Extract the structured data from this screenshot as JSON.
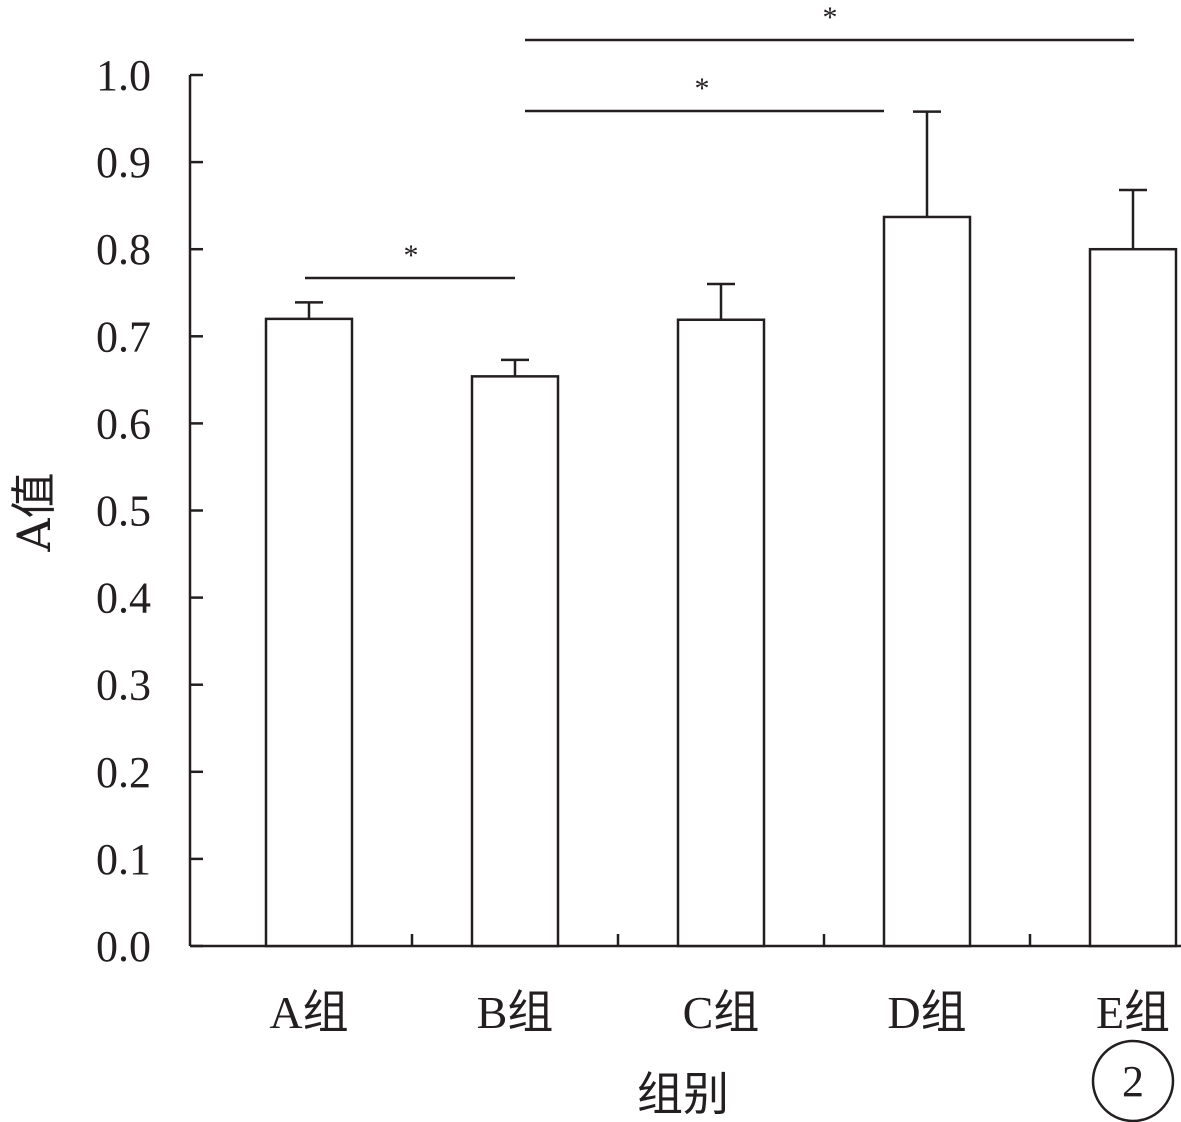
{
  "chart_data": {
    "type": "bar",
    "categories": [
      "A组",
      "B组",
      "C组",
      "D组",
      "E组"
    ],
    "values": [
      0.72,
      0.654,
      0.719,
      0.837,
      0.8
    ],
    "errors": [
      0.019,
      0.019,
      0.041,
      0.121,
      0.068
    ],
    "xlabel": "组别",
    "ylabel": "A值",
    "ylim": [
      0,
      1.0
    ],
    "yticks": [
      "0.0",
      "0.1",
      "0.2",
      "0.3",
      "0.4",
      "0.5",
      "0.6",
      "0.7",
      "0.8",
      "0.9",
      "1.0"
    ],
    "grid": false,
    "significance": [
      {
        "from": "A组",
        "to": "B组",
        "label": "*"
      },
      {
        "from": "B组",
        "to": "D组",
        "label": "*"
      },
      {
        "from": "B组",
        "to": "E组",
        "label": "*"
      }
    ]
  },
  "figure_badge": "2",
  "colors": {
    "ink": "#231f20",
    "bar_fill": "#ffffff"
  }
}
